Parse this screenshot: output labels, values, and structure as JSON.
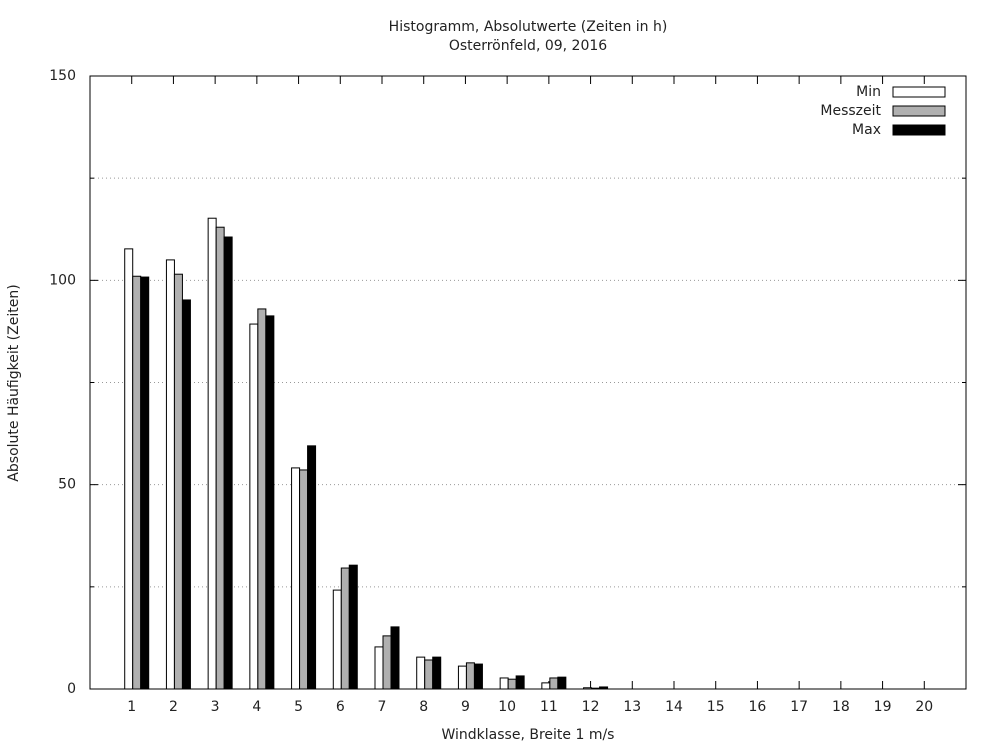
{
  "chart_data": {
    "type": "bar",
    "title": "Histogramm, Absolutwerte (Zeiten in h)",
    "subtitle": "Osterrönfeld, 09, 2016",
    "xlabel": "Windklasse, Breite 1 m/s",
    "ylabel": "Absolute Häufigkeit (Zeiten)",
    "x": [
      1,
      2,
      3,
      4,
      5,
      6,
      7,
      8,
      9,
      10,
      11,
      12,
      13,
      14,
      15,
      16,
      17,
      18,
      19,
      20
    ],
    "xlim": [
      0,
      21
    ],
    "ylim": [
      0,
      150
    ],
    "yticks": [
      0,
      50,
      100,
      150
    ],
    "minor_yticks": [
      25,
      75,
      125
    ],
    "grid": true,
    "legend": "top-right",
    "series": [
      {
        "name": "Min",
        "color": "#ffffff",
        "values": [
          107.7,
          105,
          115.2,
          89.3,
          54.1,
          24.2,
          10.3,
          7.8,
          5.6,
          2.7,
          1.5,
          0.3,
          0,
          0,
          0,
          0,
          0,
          0,
          0,
          0
        ]
      },
      {
        "name": "Messzeit",
        "color": "#b0b0b0",
        "values": [
          101,
          101.5,
          113,
          93,
          53.6,
          29.6,
          13,
          7.1,
          6.4,
          2.4,
          2.7,
          0.2,
          0,
          0,
          0,
          0,
          0,
          0,
          0,
          0
        ]
      },
      {
        "name": "Max",
        "color": "#000000",
        "values": [
          100.8,
          95.2,
          110.6,
          91.3,
          59.5,
          30.3,
          15.2,
          7.8,
          6.1,
          3.2,
          2.9,
          0.5,
          0,
          0,
          0,
          0,
          0,
          0,
          0,
          0
        ]
      }
    ]
  }
}
